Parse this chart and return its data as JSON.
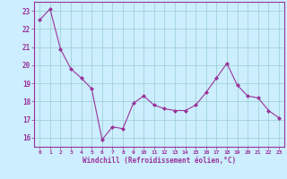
{
  "x": [
    0,
    1,
    2,
    3,
    4,
    5,
    6,
    7,
    8,
    9,
    10,
    11,
    12,
    13,
    14,
    15,
    16,
    17,
    18,
    19,
    20,
    21,
    22,
    23
  ],
  "y": [
    22.5,
    23.1,
    20.9,
    19.8,
    19.3,
    18.7,
    15.9,
    16.6,
    16.5,
    17.9,
    18.3,
    17.8,
    17.6,
    17.5,
    17.5,
    17.8,
    18.5,
    19.3,
    20.1,
    18.9,
    18.3,
    18.2,
    17.5,
    17.1
  ],
  "line_color": "#993399",
  "marker": "D",
  "marker_size": 2,
  "bg_color": "#cceeff",
  "grid_color": "#99cccc",
  "ylim": [
    15.5,
    23.5
  ],
  "xlim": [
    -0.5,
    23.5
  ],
  "yticks": [
    16,
    17,
    18,
    19,
    20,
    21,
    22,
    23
  ],
  "xticks": [
    0,
    1,
    2,
    3,
    4,
    5,
    6,
    7,
    8,
    9,
    10,
    11,
    12,
    13,
    14,
    15,
    16,
    17,
    18,
    19,
    20,
    21,
    22,
    23
  ],
  "xlabel": "Windchill (Refroidissement éolien,°C)",
  "xlabel_color": "#993399",
  "tick_color": "#993399",
  "axis_color": "#993399"
}
